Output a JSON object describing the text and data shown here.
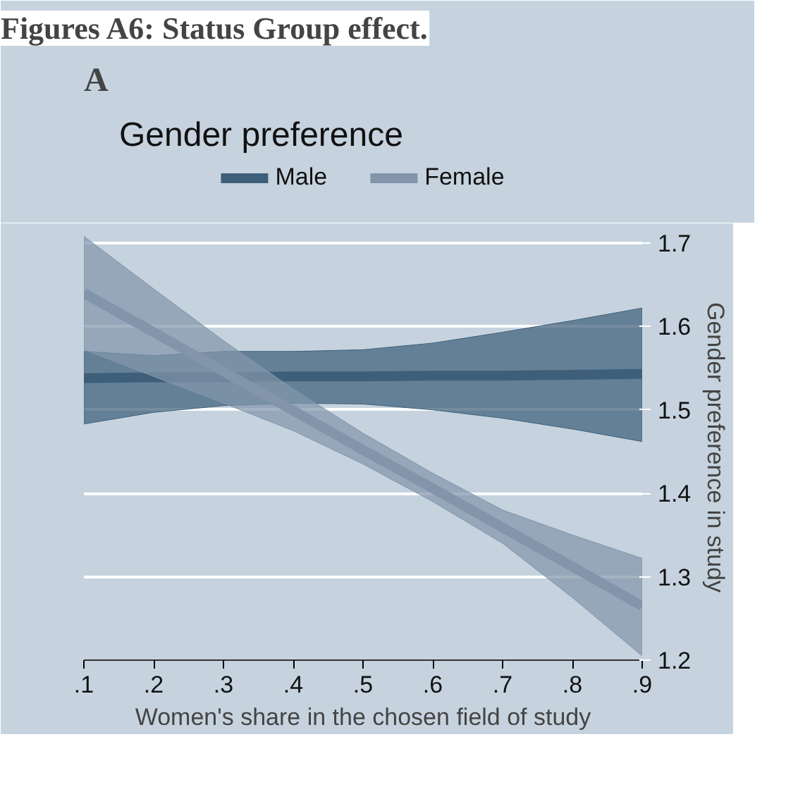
{
  "chart_data": {
    "type": "line",
    "title": "Gender preference",
    "xlabel": "Women's share in the chosen field of study",
    "ylabel": "Gender preference in study",
    "annotations": [
      "Figures A6: Status Group effect.",
      "A"
    ],
    "x": [
      0.1,
      0.2,
      0.3,
      0.4,
      0.5,
      0.6,
      0.7,
      0.8,
      0.9
    ],
    "series": [
      {
        "name": "Male",
        "color": "#3e5f7a",
        "values": [
          1.538,
          1.539,
          1.539,
          1.54,
          1.54,
          1.541,
          1.541,
          1.542,
          1.543
        ],
        "lower": [
          1.483,
          1.497,
          1.505,
          1.508,
          1.507,
          1.5,
          1.49,
          1.477,
          1.462
        ],
        "upper": [
          1.57,
          1.565,
          1.57,
          1.57,
          1.572,
          1.58,
          1.593,
          1.607,
          1.622
        ]
      },
      {
        "name": "Female",
        "color": "#8295ab",
        "values": [
          1.64,
          1.593,
          1.546,
          1.499,
          1.452,
          1.406,
          1.359,
          1.312,
          1.265
        ],
        "lower": [
          1.572,
          1.54,
          1.508,
          1.475,
          1.435,
          1.39,
          1.34,
          1.275,
          1.205
        ],
        "upper": [
          1.708,
          1.645,
          1.583,
          1.525,
          1.472,
          1.424,
          1.38,
          1.35,
          1.322
        ]
      }
    ],
    "xlim": [
      0.1,
      0.9
    ],
    "ylim": [
      1.2,
      1.71
    ],
    "xticks": [
      {
        "value": 0.1,
        "label": ".1"
      },
      {
        "value": 0.2,
        "label": ".2"
      },
      {
        "value": 0.3,
        "label": ".3"
      },
      {
        "value": 0.4,
        "label": ".4"
      },
      {
        "value": 0.5,
        "label": ".5"
      },
      {
        "value": 0.6,
        "label": ".6"
      },
      {
        "value": 0.7,
        "label": ".7"
      },
      {
        "value": 0.8,
        "label": ".8"
      },
      {
        "value": 0.9,
        "label": ".9"
      }
    ],
    "yticks": [
      1.2,
      1.3,
      1.4,
      1.5,
      1.6,
      1.7
    ],
    "grid": "y",
    "legend": "top",
    "line_style": "solid",
    "marker": "none"
  }
}
